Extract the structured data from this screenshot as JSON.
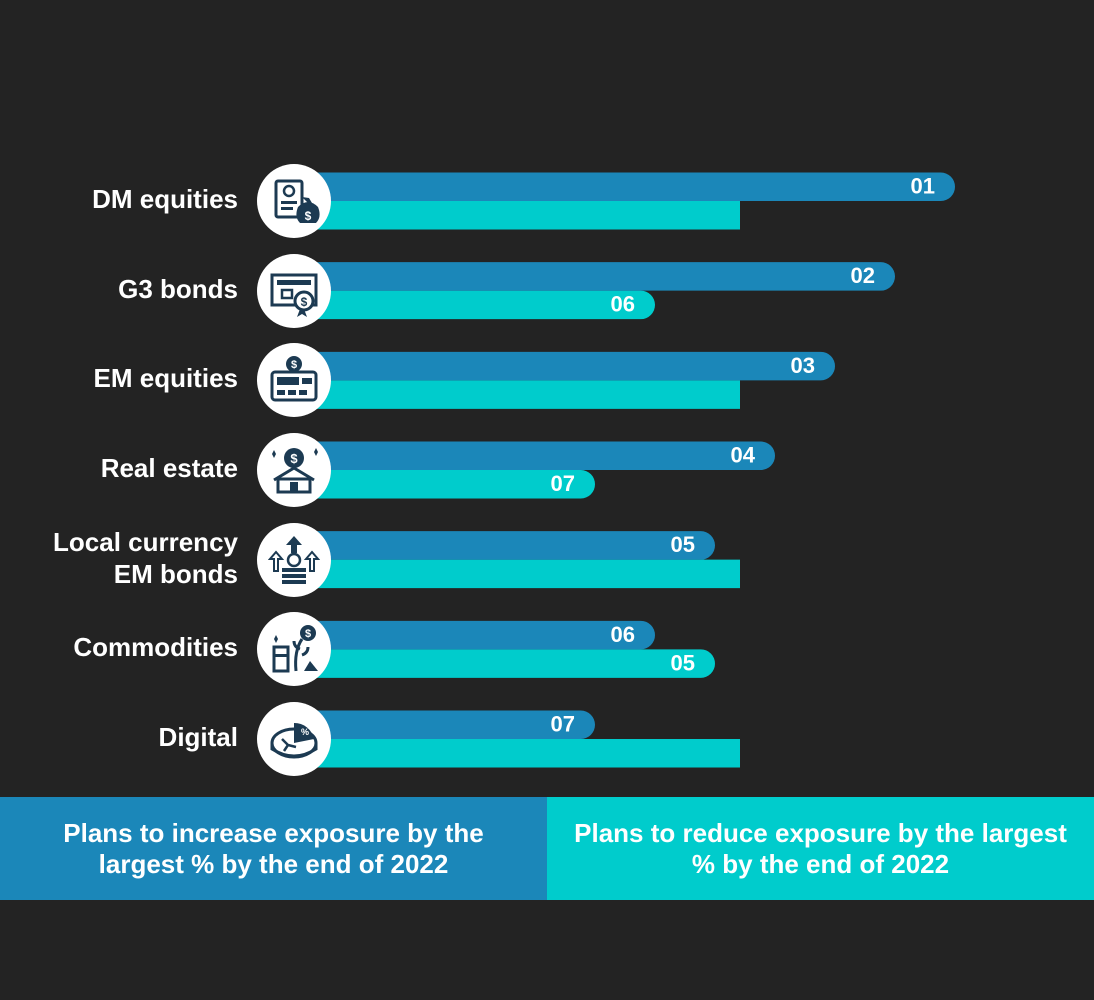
{
  "chart_data": {
    "type": "bar",
    "orientation": "horizontal",
    "categories": [
      "DM equities",
      "G3 bonds",
      "EM equities",
      "Real estate",
      "Local currency\nEM bonds",
      "Commodities",
      "Digital"
    ],
    "series": [
      {
        "name": "Plans to increase exposure by the largest % by the end of 2022",
        "values": [
          1,
          2,
          3,
          4,
          5,
          6,
          7
        ],
        "labels": [
          "01",
          "02",
          "03",
          "04",
          "05",
          "06",
          "07"
        ],
        "color": "#1B87B9"
      },
      {
        "name": "Plans to reduce exposure by the largest % by the end of 2022",
        "values": [
          null,
          6,
          null,
          7,
          null,
          5,
          null
        ],
        "labels": [
          "",
          "06",
          "",
          "07",
          "",
          "05",
          ""
        ],
        "color": "#00CCCC"
      }
    ],
    "icons": [
      "certificate-money-bag-icon",
      "bond-certificate-icon",
      "stock-ticker-icon",
      "real-estate-investment-icon",
      "currency-growth-icon",
      "commodities-icon",
      "digital-pie-chart-icon"
    ],
    "legend_position": "bottom"
  },
  "colors": {
    "background": "#232323",
    "increase": "#1B87B9",
    "reduce": "#00CCCC",
    "icon_fill": "#1C3A52",
    "icon_bg": "#FFFFFF"
  }
}
